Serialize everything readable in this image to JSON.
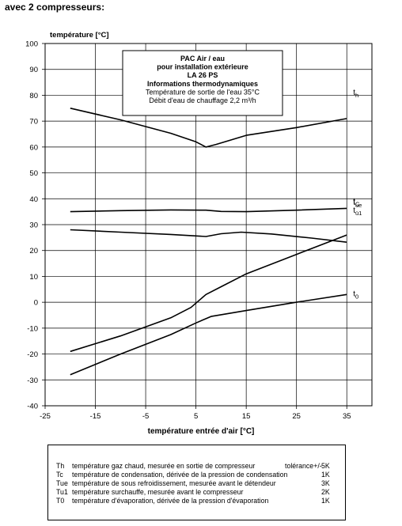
{
  "heading": "avec 2 compresseurs:",
  "chart_data": {
    "type": "line",
    "ylabel": "température [°C]",
    "xlabel": "température entrée d'air [°C]",
    "xlim": [
      -25,
      40
    ],
    "ylim": [
      -40,
      100
    ],
    "x_ticks": [
      -25,
      -15,
      -5,
      5,
      15,
      25,
      35
    ],
    "y_ticks": [
      -40,
      -30,
      -20,
      -10,
      0,
      10,
      20,
      30,
      40,
      50,
      60,
      70,
      80,
      90,
      100
    ],
    "grid": true,
    "info_box": [
      "PAC Air / eau",
      "pour installation extérieure",
      "LA 26 PS",
      "Informations thermodynamiques",
      "Température de sortie de l'eau 35°C",
      "Débit d'eau de chauffage 2,2 m³/h"
    ],
    "series": [
      {
        "name": "th",
        "label_main": "t",
        "label_sub": "h",
        "x": [
          -20,
          -10,
          0,
          5,
          7,
          9,
          15,
          25,
          35
        ],
        "y": [
          75,
          70.5,
          65.3,
          62,
          60,
          61,
          64.5,
          67.5,
          71
        ]
      },
      {
        "name": "tC",
        "label_main": "t",
        "label_sub": "C",
        "x": [
          -20,
          -10,
          0,
          7,
          10,
          15,
          25,
          35
        ],
        "y": [
          35,
          35.4,
          35.7,
          35.6,
          35.1,
          35,
          35.6,
          36.3
        ]
      },
      {
        "name": "tu1",
        "label_main": "t",
        "label_sub": "ü1",
        "x": [
          -20,
          -10,
          0,
          7,
          10,
          14,
          20,
          28,
          35
        ],
        "y": [
          28,
          27.1,
          26.2,
          25.4,
          26.5,
          27.1,
          26.4,
          24.8,
          23.2
        ]
      },
      {
        "name": "tue",
        "label_main": "t",
        "label_sub": "ue",
        "x": [
          -20,
          -10,
          0,
          4,
          7,
          10,
          15,
          25,
          35
        ],
        "y": [
          -19,
          -13,
          -6,
          -2,
          3,
          6,
          11,
          18.5,
          26
        ]
      },
      {
        "name": "t0",
        "label_main": "t",
        "label_sub": "0",
        "x": [
          -20,
          -10,
          0,
          5,
          8,
          15,
          25,
          35
        ],
        "y": [
          -28,
          -20,
          -12.5,
          -8,
          -5.5,
          -3.2,
          0,
          3
        ]
      }
    ]
  },
  "legend": {
    "tolerance_label": "tolérance+/-",
    "rows": [
      {
        "sym": "Th",
        "text": "température gaz chaud, mesurée en sortie de compresseur",
        "tol": "5K"
      },
      {
        "sym": "Tc",
        "text": "température de condensation, dérivée de la pression de condensation",
        "tol": "1K"
      },
      {
        "sym": "Tue",
        "text": "température de sous refroidissement, mesurée avant le détendeur",
        "tol": "3K"
      },
      {
        "sym": "Tu1",
        "text": "température surchauffe, mesurée avant le compresseur",
        "tol": "2K"
      },
      {
        "sym": "T0",
        "text": "température d'évaporation, dérivée de la pression d'évaporation",
        "tol": "1K"
      }
    ]
  }
}
